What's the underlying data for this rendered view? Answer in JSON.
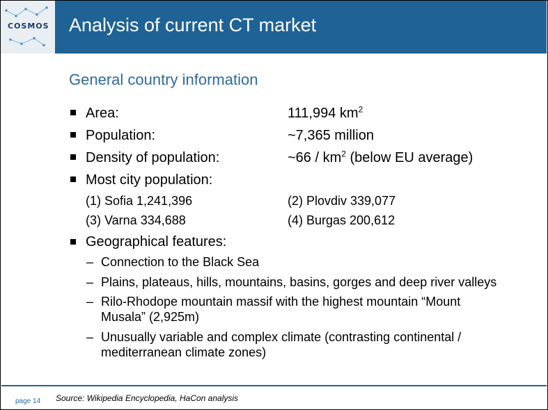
{
  "header": {
    "logo_text": "COSMOS",
    "title": "Analysis of current CT market"
  },
  "subtitle": "General country information",
  "facts": [
    {
      "label": "Area:",
      "value": "111,994 km",
      "sup": "2",
      "suffix": ""
    },
    {
      "label": "Population:",
      "value": "~7,365 million",
      "sup": "",
      "suffix": ""
    },
    {
      "label": "Density of population:",
      "value": "~66 / km",
      "sup": "2",
      "suffix": " (below EU average)"
    }
  ],
  "cities": {
    "label": "Most city population:",
    "items": [
      "(1) Sofia 1,241,396",
      "(2)  Plovdiv 339,077",
      "(3) Varna 334,688",
      "(4)  Burgas 200,612"
    ]
  },
  "geo": {
    "label": "Geographical features:",
    "items": [
      [
        "Connection to the Black Sea"
      ],
      [
        "Plains, plateaus, hills, mountains, basins, gorges and deep river valleys"
      ],
      [
        "Rilo-Rhodope mountain massif with the highest mountain “Mount",
        "Musala” (2,925m)"
      ],
      [
        "Unusually variable and complex climate (contrasting continental /",
        "mediterranean climate zones)"
      ]
    ]
  },
  "footer": {
    "page": "page 14",
    "source": "Source: Wikipedia Encyclopedia, HaCon analysis"
  }
}
